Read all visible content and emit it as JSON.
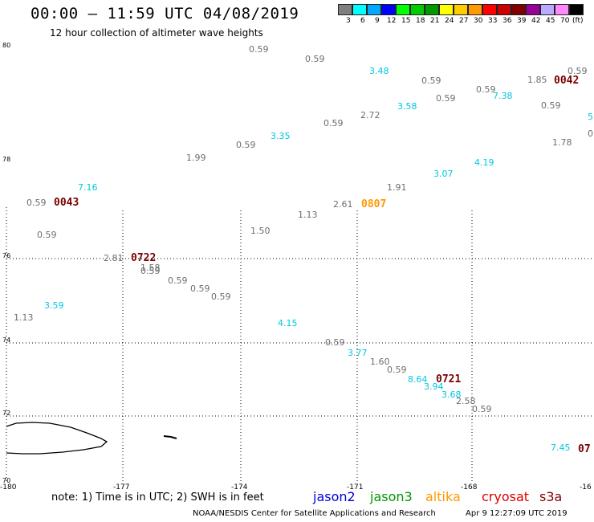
{
  "title": "00:00 – 11:59 UTC 04/08/2019",
  "subtitle": "12 hour collection of altimeter wave heights",
  "legend": {
    "unit_label": "(ft)",
    "bins": [
      {
        "label": "3",
        "color": "#7f7f7f"
      },
      {
        "label": "6",
        "color": "#00ffff"
      },
      {
        "label": "9",
        "color": "#00a8ff"
      },
      {
        "label": "12",
        "color": "#0000ff"
      },
      {
        "label": "15",
        "color": "#00ff00"
      },
      {
        "label": "18",
        "color": "#00cc00"
      },
      {
        "label": "21",
        "color": "#009900"
      },
      {
        "label": "24",
        "color": "#ffff00"
      },
      {
        "label": "27",
        "color": "#ffcc00"
      },
      {
        "label": "30",
        "color": "#ff9900"
      },
      {
        "label": "33",
        "color": "#ff0000"
      },
      {
        "label": "36",
        "color": "#cc0000"
      },
      {
        "label": "39",
        "color": "#800000"
      },
      {
        "label": "42",
        "color": "#990099"
      },
      {
        "label": "45",
        "color": "#bbaaff"
      },
      {
        "label": "70",
        "color": "#ff88ff"
      },
      {
        "label": "",
        "color": "#000000"
      }
    ]
  },
  "axes": {
    "lat_labels": [
      "80",
      "78",
      "76",
      "74",
      "72",
      "70"
    ],
    "lon_labels": [
      "-180",
      "-177",
      "-174",
      "-171",
      "-168",
      "-16"
    ]
  },
  "colors": {
    "grey": "#6e6e6e",
    "cyan": "#00c8e0",
    "darkred": "#7a0000",
    "orange": "#ff9900"
  },
  "observations": [
    {
      "v": "0.59",
      "c": "grey"
    },
    {
      "v": "0.59",
      "c": "grey"
    },
    {
      "v": "3.48",
      "c": "cyan"
    },
    {
      "v": "0.59",
      "c": "grey"
    },
    {
      "v": "0.59",
      "c": "grey"
    },
    {
      "v": "0.59",
      "c": "grey"
    },
    {
      "v": "7.38",
      "c": "cyan"
    },
    {
      "v": "1.85",
      "c": "grey"
    },
    {
      "v": "0.59",
      "c": "grey"
    },
    {
      "v": "0.59",
      "c": "grey"
    },
    {
      "v": "5",
      "c": "cyan"
    },
    {
      "v": "0",
      "c": "grey"
    },
    {
      "v": "3.58",
      "c": "cyan"
    },
    {
      "v": "2.72",
      "c": "grey"
    },
    {
      "v": "0.59",
      "c": "grey"
    },
    {
      "v": "3.35",
      "c": "cyan"
    },
    {
      "v": "0.59",
      "c": "grey"
    },
    {
      "v": "1.78",
      "c": "grey"
    },
    {
      "v": "1.99",
      "c": "grey"
    },
    {
      "v": "4.19",
      "c": "cyan"
    },
    {
      "v": "3.07",
      "c": "cyan"
    },
    {
      "v": "7.16",
      "c": "cyan"
    },
    {
      "v": "1.91",
      "c": "grey"
    },
    {
      "v": "0.59",
      "c": "grey"
    },
    {
      "v": "2.61",
      "c": "grey"
    },
    {
      "v": "1.13",
      "c": "grey"
    },
    {
      "v": "1.50",
      "c": "grey"
    },
    {
      "v": "0.59",
      "c": "grey"
    },
    {
      "v": "2.81",
      "c": "grey"
    },
    {
      "v": "1.58",
      "c": "grey"
    },
    {
      "v": "0.59",
      "c": "grey"
    },
    {
      "v": "0.59",
      "c": "grey"
    },
    {
      "v": "0.59",
      "c": "grey"
    },
    {
      "v": "0.59",
      "c": "grey"
    },
    {
      "v": "3.59",
      "c": "cyan"
    },
    {
      "v": "1.13",
      "c": "grey"
    },
    {
      "v": "4.15",
      "c": "cyan"
    },
    {
      "v": "0.59",
      "c": "grey"
    },
    {
      "v": "3.77",
      "c": "cyan"
    },
    {
      "v": "1.60",
      "c": "grey"
    },
    {
      "v": "0.59",
      "c": "grey"
    },
    {
      "v": "8.64",
      "c": "cyan"
    },
    {
      "v": "3.94",
      "c": "cyan"
    },
    {
      "v": "3.68",
      "c": "cyan"
    },
    {
      "v": "2.58",
      "c": "grey"
    },
    {
      "v": "0.59",
      "c": "grey"
    },
    {
      "v": "7.45",
      "c": "cyan"
    }
  ],
  "time_labels": [
    {
      "v": "0042",
      "c": "darkred"
    },
    {
      "v": "0043",
      "c": "darkred"
    },
    {
      "v": "0807",
      "c": "orange"
    },
    {
      "v": "0722",
      "c": "darkred"
    },
    {
      "v": "0721",
      "c": "darkred"
    },
    {
      "v": "07",
      "c": "darkred"
    }
  ],
  "footer": {
    "note": "note: 1) Time is in UTC; 2) SWH is in feet",
    "satellites": [
      {
        "name": "jason2",
        "color": "#0000dd"
      },
      {
        "name": "jason3",
        "color": "#009900"
      },
      {
        "name": "altika",
        "color": "#ff9900"
      },
      {
        "name": "cryosat",
        "color": "#dd0000"
      },
      {
        "name": "s3a",
        "color": "#880000"
      }
    ],
    "credit": "NOAA/NESDIS Center for Satellite Applications and Research",
    "timestamp": "Apr  9 12:27:09 UTC 2019"
  }
}
